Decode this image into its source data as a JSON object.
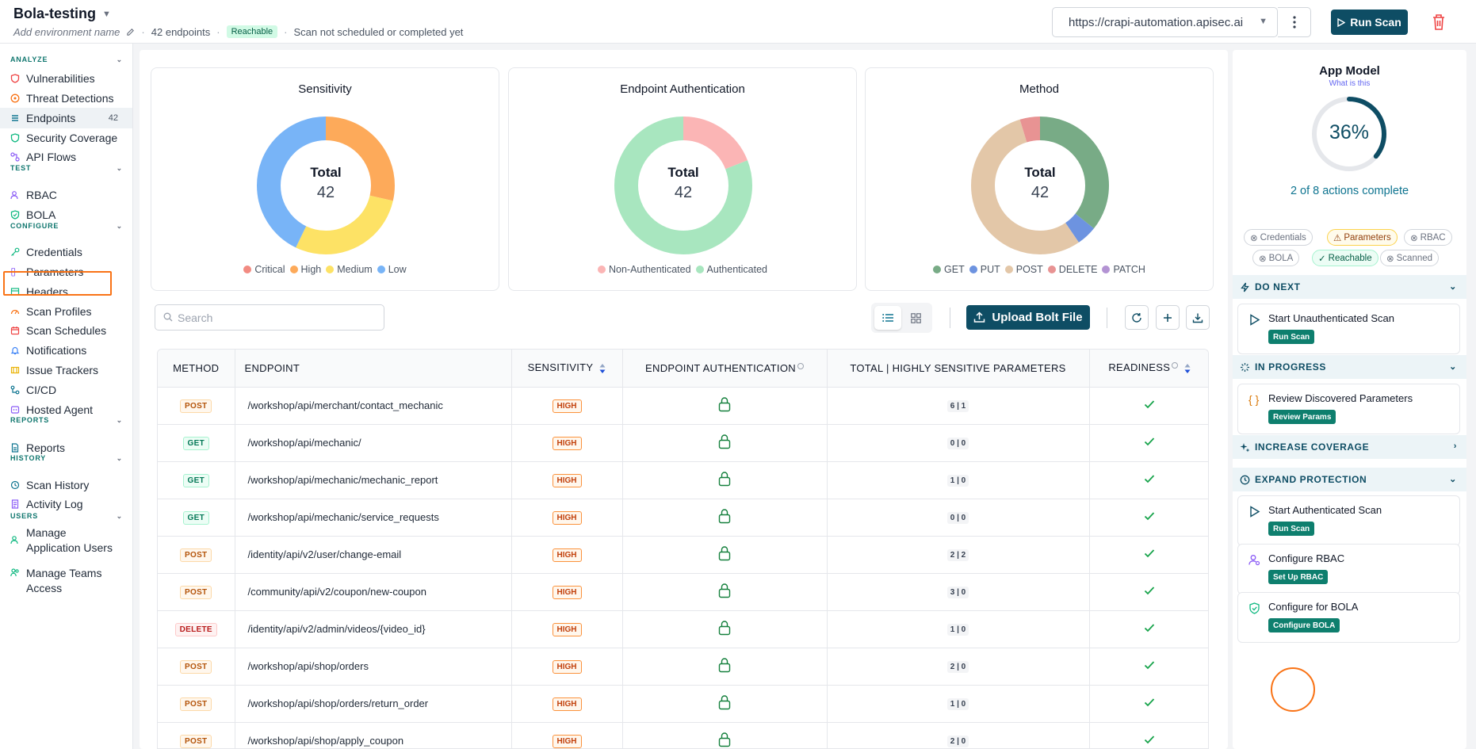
{
  "header": {
    "env_name": "Bola-testing",
    "env_placeholder": "Add environment name",
    "endpoints_count": "42 endpoints",
    "status_badge": "Reachable",
    "scan_status": "Scan not scheduled or completed yet",
    "url": "https://crapi-automation.apisec.ai",
    "run_scan": "Run Scan"
  },
  "sidebar": {
    "analyze": "ANALYZE",
    "test": "TEST",
    "configure": "CONFIGURE",
    "reports": "REPORTS",
    "history": "HISTORY",
    "users": "USERS",
    "items": {
      "vulnerabilities": "Vulnerabilities",
      "threat_detections": "Threat Detections",
      "endpoints": "Endpoints",
      "endpoints_count": "42",
      "security_coverage": "Security Coverage",
      "api_flows": "API Flows",
      "rbac": "RBAC",
      "bola": "BOLA",
      "credentials": "Credentials",
      "parameters": "Parameters",
      "headers": "Headers",
      "scan_profiles": "Scan Profiles",
      "scan_schedules": "Scan Schedules",
      "notifications": "Notifications",
      "issue_trackers": "Issue Trackers",
      "cicd": "CI/CD",
      "hosted_agent": "Hosted Agent",
      "reports": "Reports",
      "scan_history": "Scan History",
      "activity_log": "Activity Log",
      "manage_app_users_1": "Manage",
      "manage_app_users_2": "Application Users",
      "manage_teams_1": "Manage Teams",
      "manage_teams_2": "Access"
    }
  },
  "charts": {
    "total_label": "Total",
    "sensitivity": {
      "title": "Sensitivity",
      "total": "42",
      "legend": [
        "Critical",
        "High",
        "Medium",
        "Low"
      ]
    },
    "auth": {
      "title": "Endpoint Authentication",
      "total": "42",
      "legend": [
        "Non-Authenticated",
        "Authenticated"
      ]
    },
    "method": {
      "title": "Method",
      "total": "42",
      "legend": [
        "GET",
        "PUT",
        "POST",
        "DELETE",
        "PATCH"
      ]
    }
  },
  "chart_data": [
    {
      "type": "pie",
      "title": "Sensitivity",
      "categories": [
        "Critical",
        "High",
        "Medium",
        "Low"
      ],
      "values": [
        0,
        12,
        12,
        18
      ],
      "colors": [
        "#f28b82",
        "#fdaa5a",
        "#fde265",
        "#78b4f7"
      ]
    },
    {
      "type": "pie",
      "title": "Endpoint Authentication",
      "categories": [
        "Non-Authenticated",
        "Authenticated"
      ],
      "values": [
        8,
        34
      ],
      "colors": [
        "#fbb5b5",
        "#a8e6bf"
      ]
    },
    {
      "type": "pie",
      "title": "Method",
      "categories": [
        "GET",
        "PUT",
        "POST",
        "DELETE",
        "PATCH"
      ],
      "values": [
        15,
        2,
        23,
        2,
        0
      ],
      "colors": [
        "#78ab86",
        "#6d93e0",
        "#e3c7a8",
        "#e89393",
        "#b393d3"
      ]
    }
  ],
  "toolbar": {
    "search_placeholder": "Search",
    "upload": "Upload Bolt File"
  },
  "table": {
    "headers": {
      "method": "METHOD",
      "endpoint": "ENDPOINT",
      "sensitivity": "SENSITIVITY",
      "auth": "ENDPOINT AUTHENTICATION",
      "params": "TOTAL | HIGHLY SENSITIVE PARAMETERS",
      "readiness": "READINESS"
    },
    "rows": [
      {
        "method": "POST",
        "endpoint": "/workshop/api/merchant/contact_mechanic",
        "sensitivity": "HIGH",
        "params": "6 | 1"
      },
      {
        "method": "GET",
        "endpoint": "/workshop/api/mechanic/",
        "sensitivity": "HIGH",
        "params": "0 | 0"
      },
      {
        "method": "GET",
        "endpoint": "/workshop/api/mechanic/mechanic_report",
        "sensitivity": "HIGH",
        "params": "1 | 0"
      },
      {
        "method": "GET",
        "endpoint": "/workshop/api/mechanic/service_requests",
        "sensitivity": "HIGH",
        "params": "0 | 0"
      },
      {
        "method": "POST",
        "endpoint": "/identity/api/v2/user/change-email",
        "sensitivity": "HIGH",
        "params": "2 | 2"
      },
      {
        "method": "POST",
        "endpoint": "/community/api/v2/coupon/new-coupon",
        "sensitivity": "HIGH",
        "params": "3 | 0"
      },
      {
        "method": "DELETE",
        "endpoint": "/identity/api/v2/admin/videos/{video_id}",
        "sensitivity": "HIGH",
        "params": "1 | 0"
      },
      {
        "method": "POST",
        "endpoint": "/workshop/api/shop/orders",
        "sensitivity": "HIGH",
        "params": "2 | 0"
      },
      {
        "method": "POST",
        "endpoint": "/workshop/api/shop/orders/return_order",
        "sensitivity": "HIGH",
        "params": "1 | 0"
      },
      {
        "method": "POST",
        "endpoint": "/workshop/api/shop/apply_coupon",
        "sensitivity": "HIGH",
        "params": "2 | 0"
      }
    ]
  },
  "app_model": {
    "title": "App Model",
    "link": "What is this",
    "percent": "36%",
    "percent_value": 36,
    "progress": "2 of 8 actions complete",
    "chips": [
      {
        "label": "Credentials",
        "state": "todo"
      },
      {
        "label": "Parameters",
        "state": "warn"
      },
      {
        "label": "RBAC",
        "state": "todo"
      },
      {
        "label": "BOLA",
        "state": "todo"
      },
      {
        "label": "Reachable",
        "state": "done"
      },
      {
        "label": "Scanned",
        "state": "todo"
      }
    ],
    "sections": {
      "do_next": "DO NEXT",
      "in_progress": "IN PROGRESS",
      "increase_coverage": "INCREASE COVERAGE",
      "expand_protection": "EXPAND PROTECTION"
    },
    "actions": {
      "unauth_scan": {
        "title": "Start Unauthenticated Scan",
        "button": "Run Scan"
      },
      "review_params": {
        "title": "Review Discovered Parameters",
        "button": "Review Params"
      },
      "auth_scan": {
        "title": "Start Authenticated Scan",
        "button": "Run Scan"
      },
      "rbac": {
        "title": "Configure RBAC",
        "button": "Set Up RBAC"
      },
      "bola": {
        "title": "Configure for BOLA",
        "button": "Configure BOLA"
      }
    }
  }
}
